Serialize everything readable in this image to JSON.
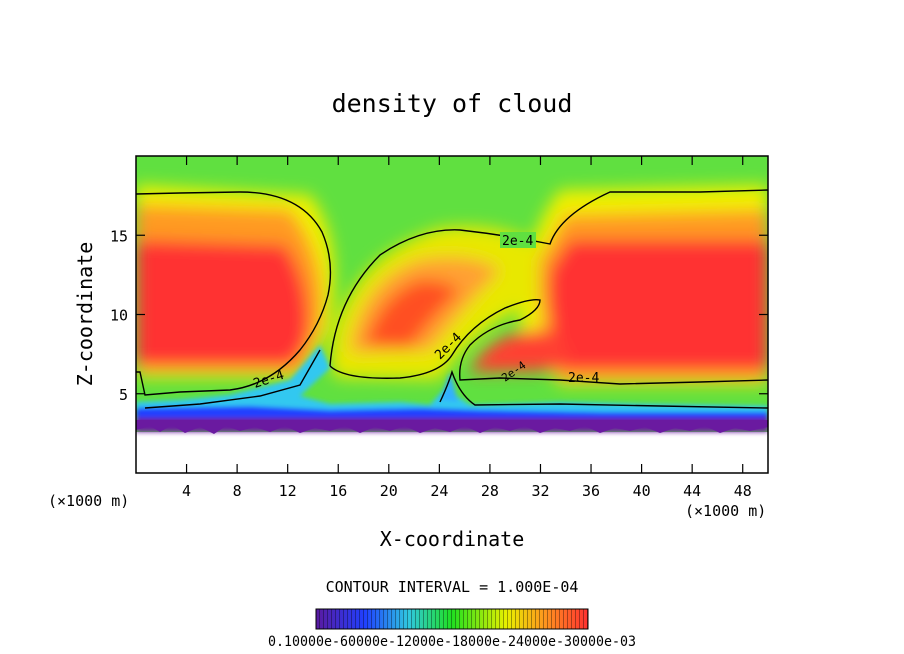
{
  "chart_data": {
    "type": "heatmap",
    "title": "density of cloud",
    "xlabel": "X-coordinate",
    "ylabel": "Z-coordinate",
    "x_unit": "(×1000 m)",
    "y_unit": "(×1000 m)",
    "xlim": [
      0,
      50
    ],
    "ylim": [
      0,
      20
    ],
    "x_ticks": [
      4,
      8,
      12,
      16,
      20,
      24,
      28,
      32,
      36,
      40,
      44,
      48
    ],
    "y_ticks": [
      5,
      10,
      15
    ],
    "contour_interval_text": "CONTOUR INTERVAL = 1.000E-04",
    "contour_labels": [
      "2e-4",
      "2e-4",
      "2e-4",
      "2e-4",
      "2e-4"
    ],
    "colorbar_text": "0.10000e-60000e-12000e-18000e-24000e-30000e-03",
    "colors": {
      "low": "#5a1aa0",
      "mid_low": "#2040ff",
      "mid": "#20e020",
      "mid_high": "#e8f000",
      "high": "#ff3030"
    }
  }
}
